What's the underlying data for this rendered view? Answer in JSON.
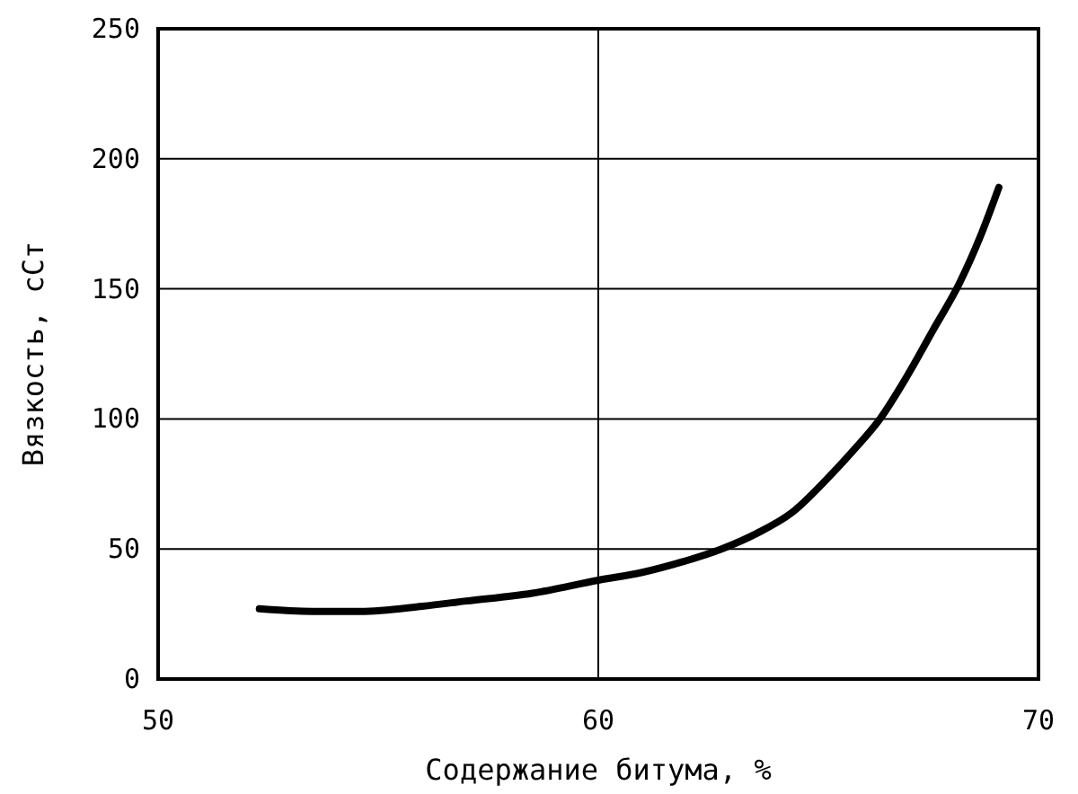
{
  "chart_data": {
    "type": "line",
    "xlabel": "Содержание битума, %",
    "ylabel": "Вязкость, сСт",
    "x": [
      52.3,
      53.5,
      54.6,
      56,
      57,
      58.5,
      60,
      61,
      61.9,
      62.8,
      63.6,
      64.4,
      65.2,
      65.8,
      66.4,
      67,
      67.6,
      68.2,
      68.7,
      69.1
    ],
    "series": [
      {
        "color": "#000000",
        "values": [
          27,
          26,
          26,
          28,
          30,
          33,
          38,
          41,
          45,
          50,
          56,
          64,
          77,
          88,
          100,
          116,
          134,
          152,
          171,
          189
        ]
      }
    ],
    "xlim": [
      50,
      70
    ],
    "xticks": [
      50,
      60,
      70
    ],
    "ylim": [
      0,
      250
    ],
    "yticks": [
      0,
      50,
      100,
      150,
      200,
      250
    ],
    "grid": true,
    "marker": "none",
    "line_style": "solid"
  }
}
